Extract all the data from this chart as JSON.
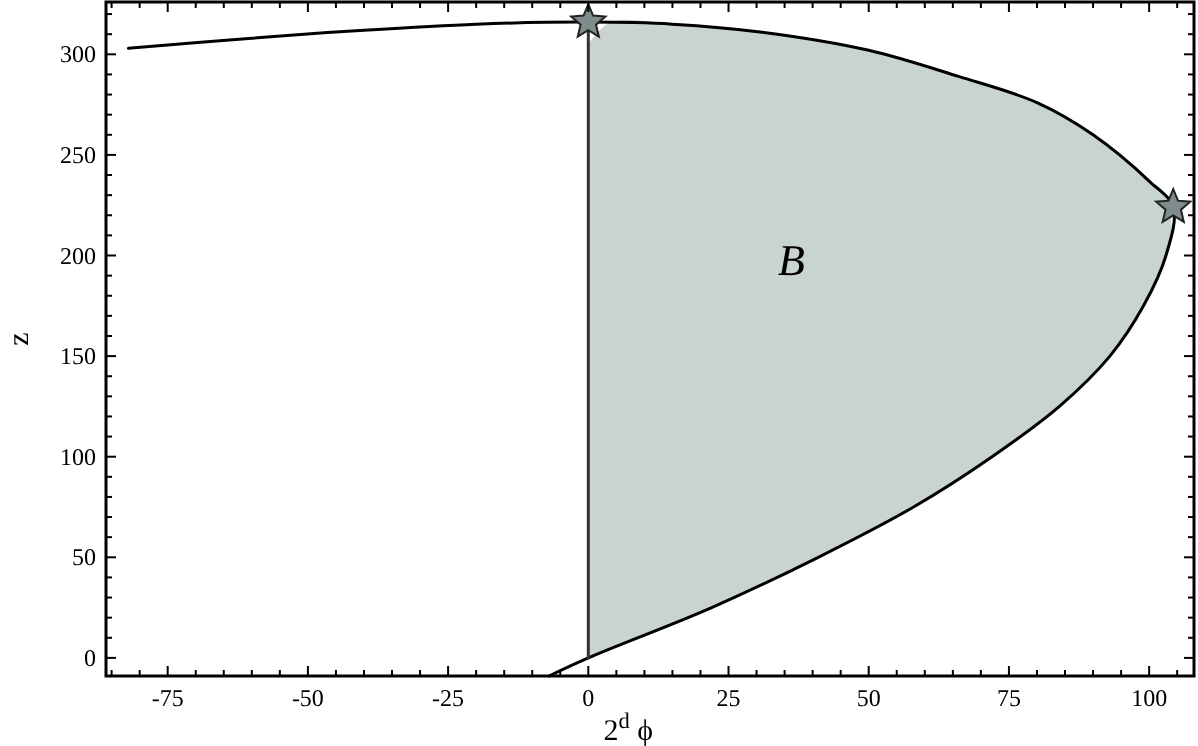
{
  "chart_data": {
    "type": "line",
    "xlabel": "2$^{d}$ ϕ",
    "ylabel": "z",
    "xlim": [
      -86,
      108
    ],
    "ylim": [
      -9,
      326
    ],
    "xticks": [
      {
        "value": -85,
        "label": null
      },
      {
        "value": -80,
        "label": null
      },
      -75,
      {
        "value": -70,
        "label": null
      },
      {
        "value": -65,
        "label": null
      },
      {
        "value": -60,
        "label": null
      },
      {
        "value": -55,
        "label": null
      },
      -50,
      {
        "value": -45,
        "label": null
      },
      {
        "value": -40,
        "label": null
      },
      {
        "value": -35,
        "label": null
      },
      {
        "value": -30,
        "label": null
      },
      -25,
      {
        "value": -20,
        "label": null
      },
      {
        "value": -15,
        "label": null
      },
      {
        "value": -10,
        "label": null
      },
      {
        "value": -5,
        "label": null
      },
      0,
      {
        "value": 5,
        "label": null
      },
      {
        "value": 10,
        "label": null
      },
      {
        "value": 15,
        "label": null
      },
      {
        "value": 20,
        "label": null
      },
      25,
      {
        "value": 30,
        "label": null
      },
      {
        "value": 35,
        "label": null
      },
      {
        "value": 40,
        "label": null
      },
      {
        "value": 45,
        "label": null
      },
      50,
      {
        "value": 55,
        "label": null
      },
      {
        "value": 60,
        "label": null
      },
      {
        "value": 65,
        "label": null
      },
      {
        "value": 70,
        "label": null
      },
      75,
      {
        "value": 80,
        "label": null
      },
      {
        "value": 85,
        "label": null
      },
      {
        "value": 90,
        "label": null
      },
      {
        "value": 95,
        "label": null
      },
      100,
      {
        "value": 105,
        "label": null
      }
    ],
    "yticks": [
      0,
      {
        "value": 10,
        "label": null
      },
      {
        "value": 20,
        "label": null
      },
      {
        "value": 30,
        "label": null
      },
      {
        "value": 40,
        "label": null
      },
      50,
      {
        "value": 60,
        "label": null
      },
      {
        "value": 70,
        "label": null
      },
      {
        "value": 80,
        "label": null
      },
      {
        "value": 90,
        "label": null
      },
      100,
      {
        "value": 110,
        "label": null
      },
      {
        "value": 120,
        "label": null
      },
      {
        "value": 130,
        "label": null
      },
      {
        "value": 140,
        "label": null
      },
      150,
      {
        "value": 160,
        "label": null
      },
      {
        "value": 170,
        "label": null
      },
      {
        "value": 180,
        "label": null
      },
      {
        "value": 190,
        "label": null
      },
      200,
      {
        "value": 210,
        "label": null
      },
      {
        "value": 220,
        "label": null
      },
      {
        "value": 230,
        "label": null
      },
      {
        "value": 240,
        "label": null
      },
      250,
      {
        "value": 260,
        "label": null
      },
      {
        "value": 270,
        "label": null
      },
      {
        "value": 280,
        "label": null
      },
      {
        "value": 290,
        "label": null
      },
      300,
      {
        "value": 310,
        "label": null
      },
      {
        "value": 320,
        "label": null
      }
    ],
    "series": [
      {
        "type": "area",
        "color": "#c9d3d1",
        "x": [
          0,
          4,
          15,
          31,
          50,
          66,
          80,
          90,
          100,
          102.5,
          104,
          103,
          99,
          93,
          84,
          72,
          58,
          41,
          22,
          0
        ],
        "values": [
          305,
          316,
          315,
          311,
          302,
          289,
          276,
          260,
          237,
          232,
          214,
          200,
          175,
          150,
          125,
          100,
          75,
          50,
          25,
          0
        ]
      },
      {
        "color": "#000000",
        "x": [
          -82,
          -60,
          -40,
          -20,
          0,
          15,
          31,
          50,
          66,
          80,
          90,
          100,
          104.3,
          103,
          99,
          93,
          84,
          72,
          58,
          41,
          22,
          0,
          -7
        ],
        "values": [
          303,
          308,
          312,
          315,
          316,
          315,
          311,
          302,
          289,
          276,
          260,
          237,
          224,
          200,
          175,
          150,
          125,
          100,
          75,
          50,
          25,
          0,
          -9
        ]
      },
      {
        "color": "#333333",
        "x": [
          0,
          0,
          0
        ],
        "values": [
          0,
          150,
          312
        ]
      },
      {
        "type": "scatter",
        "marker": "star",
        "color": "#7f8c8c",
        "x": [
          0,
          104.3
        ],
        "values": [
          316,
          224
        ]
      }
    ],
    "annotations": [
      "B"
    ]
  }
}
